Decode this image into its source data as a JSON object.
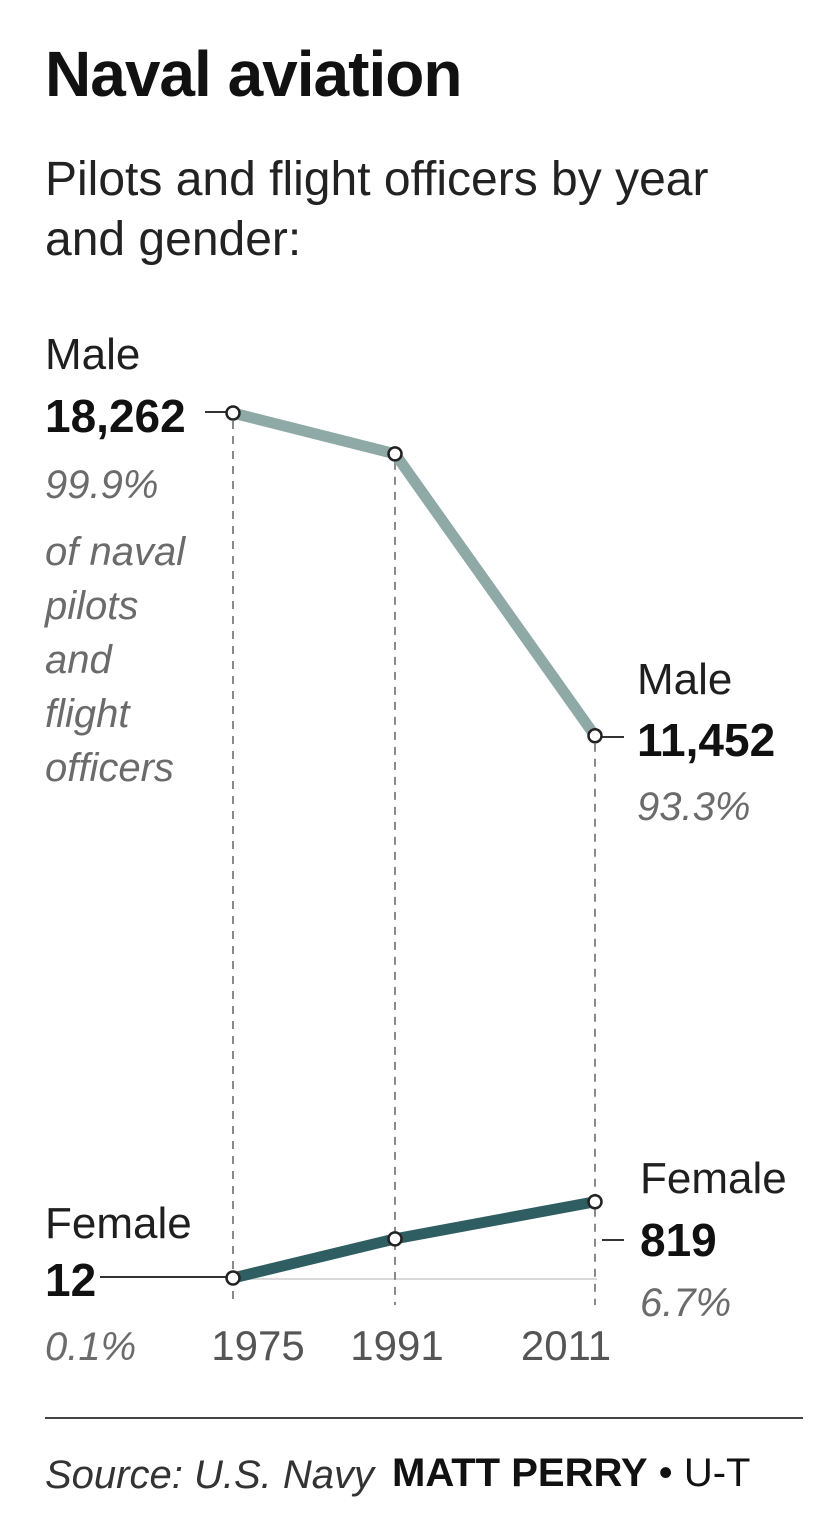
{
  "title": "Naval aviation",
  "subtitle": "Pilots and flight officers by year and gender:",
  "male_start": {
    "label": "Male",
    "value": "18,262",
    "pct": "99.9%",
    "note": [
      "of naval",
      "pilots",
      "and",
      "flight",
      "officers"
    ]
  },
  "male_end": {
    "label": "Male",
    "value": "11,452",
    "pct": "93.3%"
  },
  "female_start": {
    "label": "Female",
    "value": "12",
    "pct": "0.1%"
  },
  "female_end": {
    "label": "Female",
    "value": "819",
    "pct": "6.7%"
  },
  "footer": {
    "source": "Source: U.S. Navy",
    "author": "MATT PERRY",
    "separator": "•",
    "outlet": "U-T"
  },
  "colors": {
    "male": "#8fa9a7",
    "female": "#2f5e62"
  },
  "chart_data": {
    "type": "line",
    "x": [
      1975,
      1991,
      2011
    ],
    "series": [
      {
        "name": "Male",
        "values": [
          18262,
          17400,
          11452
        ]
      },
      {
        "name": "Female",
        "values": [
          12,
          500,
          819
        ]
      }
    ],
    "tick_labels": [
      "1975",
      "1991",
      "2011"
    ]
  }
}
